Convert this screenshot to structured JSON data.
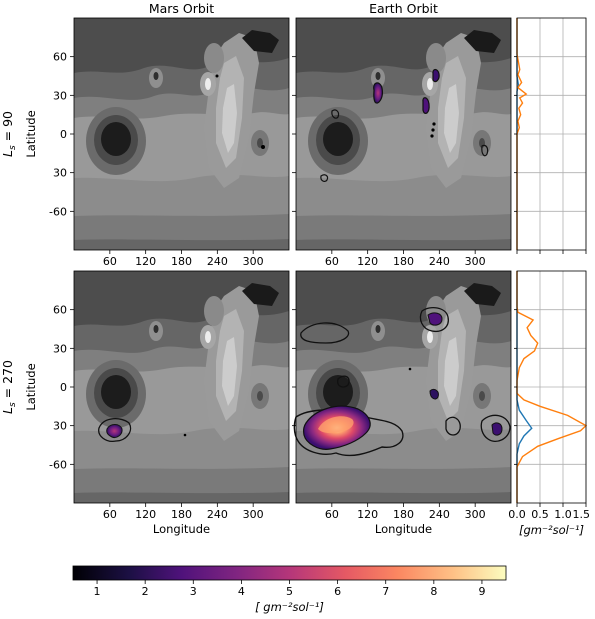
{
  "chart_data": {
    "type": "contour",
    "column_titles": [
      "Mars Orbit",
      "Earth Orbit"
    ],
    "row_labels": [
      "L_s = 90",
      "L_s = 270"
    ],
    "map_xlabel": "Longitude",
    "map_ylabel": "Latitude",
    "map_xticks": [
      "60",
      "120",
      "180",
      "240",
      "300"
    ],
    "map_yticks": [
      "60",
      "30",
      "0",
      "30",
      "-60"
    ],
    "side_xticks": [
      "0.0",
      "0.5",
      "1.0",
      "1.5"
    ],
    "side_xlabel": "[gm⁻²sol⁻¹]",
    "xlim": [
      0,
      360
    ],
    "ylim": [
      -90,
      90
    ],
    "side_xlim": [
      0,
      1.5
    ],
    "colorbar": {
      "ticks": [
        "1",
        "2",
        "3",
        "4",
        "5",
        "6",
        "7",
        "8",
        "9"
      ],
      "label": "[ gm⁻²sol⁻¹]",
      "range": [
        0.5,
        9.5
      ]
    },
    "profiles": [
      {
        "panel": "Ls90",
        "series": [
          {
            "color": "#1f77b4",
            "points": [
              [
                0,
                90
              ],
              [
                0,
                45
              ],
              [
                0.03,
                38
              ],
              [
                0,
                33
              ],
              [
                0,
                -90
              ]
            ]
          },
          {
            "color": "#ff7f0e",
            "points": [
              [
                0,
                90
              ],
              [
                0,
                62
              ],
              [
                0.02,
                58
              ],
              [
                0.06,
                50
              ],
              [
                0.02,
                46
              ],
              [
                0.1,
                40
              ],
              [
                0.02,
                36
              ],
              [
                0.2,
                31
              ],
              [
                0.06,
                28
              ],
              [
                0.12,
                24
              ],
              [
                0.04,
                20
              ],
              [
                0.08,
                15
              ],
              [
                0.02,
                10
              ],
              [
                0.05,
                5
              ],
              [
                0,
                0
              ],
              [
                0,
                -90
              ]
            ]
          }
        ]
      },
      {
        "panel": "Ls270",
        "series": [
          {
            "color": "#1f77b4",
            "points": [
              [
                0,
                90
              ],
              [
                0,
                -10
              ],
              [
                0.05,
                -18
              ],
              [
                0.2,
                -26
              ],
              [
                0.32,
                -32
              ],
              [
                0.15,
                -38
              ],
              [
                0.05,
                -44
              ],
              [
                0,
                -52
              ],
              [
                0,
                -90
              ]
            ]
          },
          {
            "color": "#ff7f0e",
            "points": [
              [
                0,
                90
              ],
              [
                0,
                62
              ],
              [
                0.02,
                58
              ],
              [
                0.35,
                52
              ],
              [
                0.22,
                46
              ],
              [
                0.3,
                40
              ],
              [
                0.45,
                34
              ],
              [
                0.38,
                28
              ],
              [
                0.15,
                22
              ],
              [
                0.05,
                15
              ],
              [
                0,
                5
              ],
              [
                0,
                -5
              ],
              [
                0.15,
                -10
              ],
              [
                0.5,
                -15
              ],
              [
                1.1,
                -22
              ],
              [
                1.5,
                -30
              ],
              [
                1.38,
                -34
              ],
              [
                0.9,
                -40
              ],
              [
                0.45,
                -46
              ],
              [
                0.12,
                -54
              ],
              [
                0,
                -62
              ],
              [
                0,
                -90
              ]
            ]
          }
        ]
      }
    ]
  }
}
